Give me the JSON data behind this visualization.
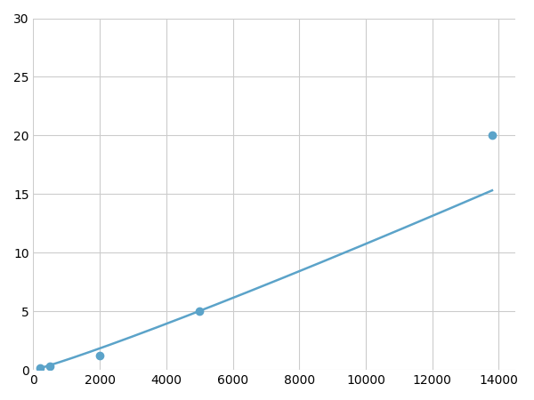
{
  "x_points": [
    200,
    500,
    2000,
    5000,
    13800
  ],
  "y_points": [
    0.2,
    0.35,
    1.2,
    5.0,
    20.0
  ],
  "line_color": "#5ba3c9",
  "marker_color": "#5ba3c9",
  "marker_size": 6,
  "line_width": 1.8,
  "xlim": [
    0,
    14500
  ],
  "ylim": [
    0,
    30
  ],
  "xticks": [
    0,
    2000,
    4000,
    6000,
    8000,
    10000,
    12000,
    14000
  ],
  "yticks": [
    0,
    5,
    10,
    15,
    20,
    25,
    30
  ],
  "grid_color": "#cccccc",
  "background_color": "#ffffff",
  "tick_label_fontsize": 10
}
